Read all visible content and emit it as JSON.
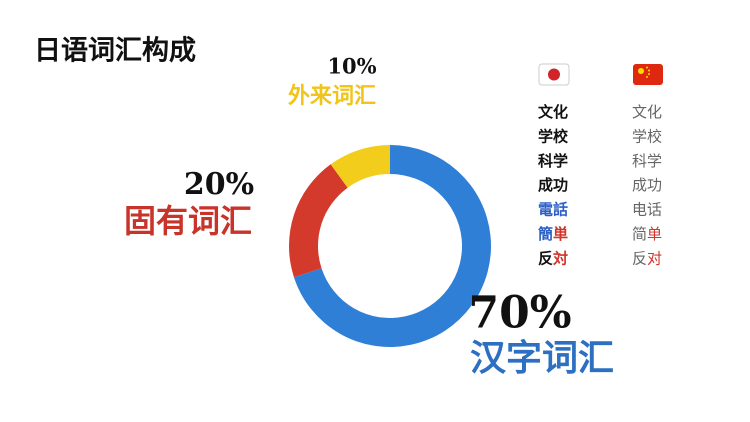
{
  "chart_data": {
    "type": "donut",
    "title": "日语词汇构成",
    "categories": [
      "汉字词汇",
      "固有词汇",
      "外来词汇"
    ],
    "values": [
      70,
      20,
      10
    ],
    "value_labels": [
      "70%",
      "20%",
      "10%"
    ],
    "colors": [
      "#2f7fd6",
      "#d33a2c",
      "#f3cd1c"
    ],
    "label_colors": [
      "#2d6fc0",
      "#c8332a",
      "#f0c419"
    ]
  },
  "word_table": {
    "japanese": [
      [
        {
          "text": "文化",
          "color": "#111111"
        }
      ],
      [
        {
          "text": "学校",
          "color": "#111111"
        }
      ],
      [
        {
          "text": "科学",
          "color": "#111111"
        }
      ],
      [
        {
          "text": "成功",
          "color": "#111111"
        }
      ],
      [
        {
          "text": "電話",
          "color": "#2b5fc7"
        }
      ],
      [
        {
          "text": "簡",
          "color": "#2b5fc7"
        },
        {
          "text": "単",
          "color": "#d0342a"
        }
      ],
      [
        {
          "text": "反",
          "color": "#111111"
        },
        {
          "text": "対",
          "color": "#d0342a"
        }
      ]
    ],
    "chinese": [
      [
        {
          "text": "文化",
          "color": "#666666"
        }
      ],
      [
        {
          "text": "学校",
          "color": "#666666"
        }
      ],
      [
        {
          "text": "科学",
          "color": "#666666"
        }
      ],
      [
        {
          "text": "成功",
          "color": "#666666"
        }
      ],
      [
        {
          "text": "电话",
          "color": "#666666"
        }
      ],
      [
        {
          "text": "简",
          "color": "#666666"
        },
        {
          "text": "单",
          "color": "#d0342a"
        }
      ],
      [
        {
          "text": "反",
          "color": "#666666"
        },
        {
          "text": "对",
          "color": "#d0342a"
        }
      ]
    ]
  }
}
